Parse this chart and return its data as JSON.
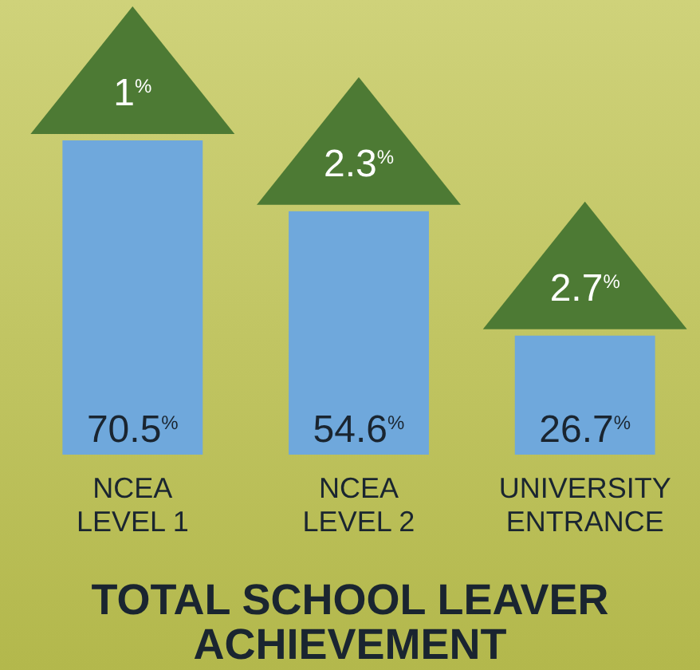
{
  "chart_data": {
    "type": "bar",
    "title": "TOTAL SCHOOL LEAVER ACHIEVEMENT",
    "categories": [
      "NCEA LEVEL 1",
      "NCEA LEVEL 2",
      "UNIVERSITY ENTRANCE"
    ],
    "values": [
      70.5,
      54.6,
      26.7
    ],
    "color": "#6fa8dc",
    "value_labels": [
      "70.5$^{%}$",
      "54.6$^{%}$",
      "26.7$^{%}$"
    ],
    "annotations": [
      "1$^{%}$",
      "2.3$^{%}$",
      "2.7$^{%}$"
    ]
  }
}
